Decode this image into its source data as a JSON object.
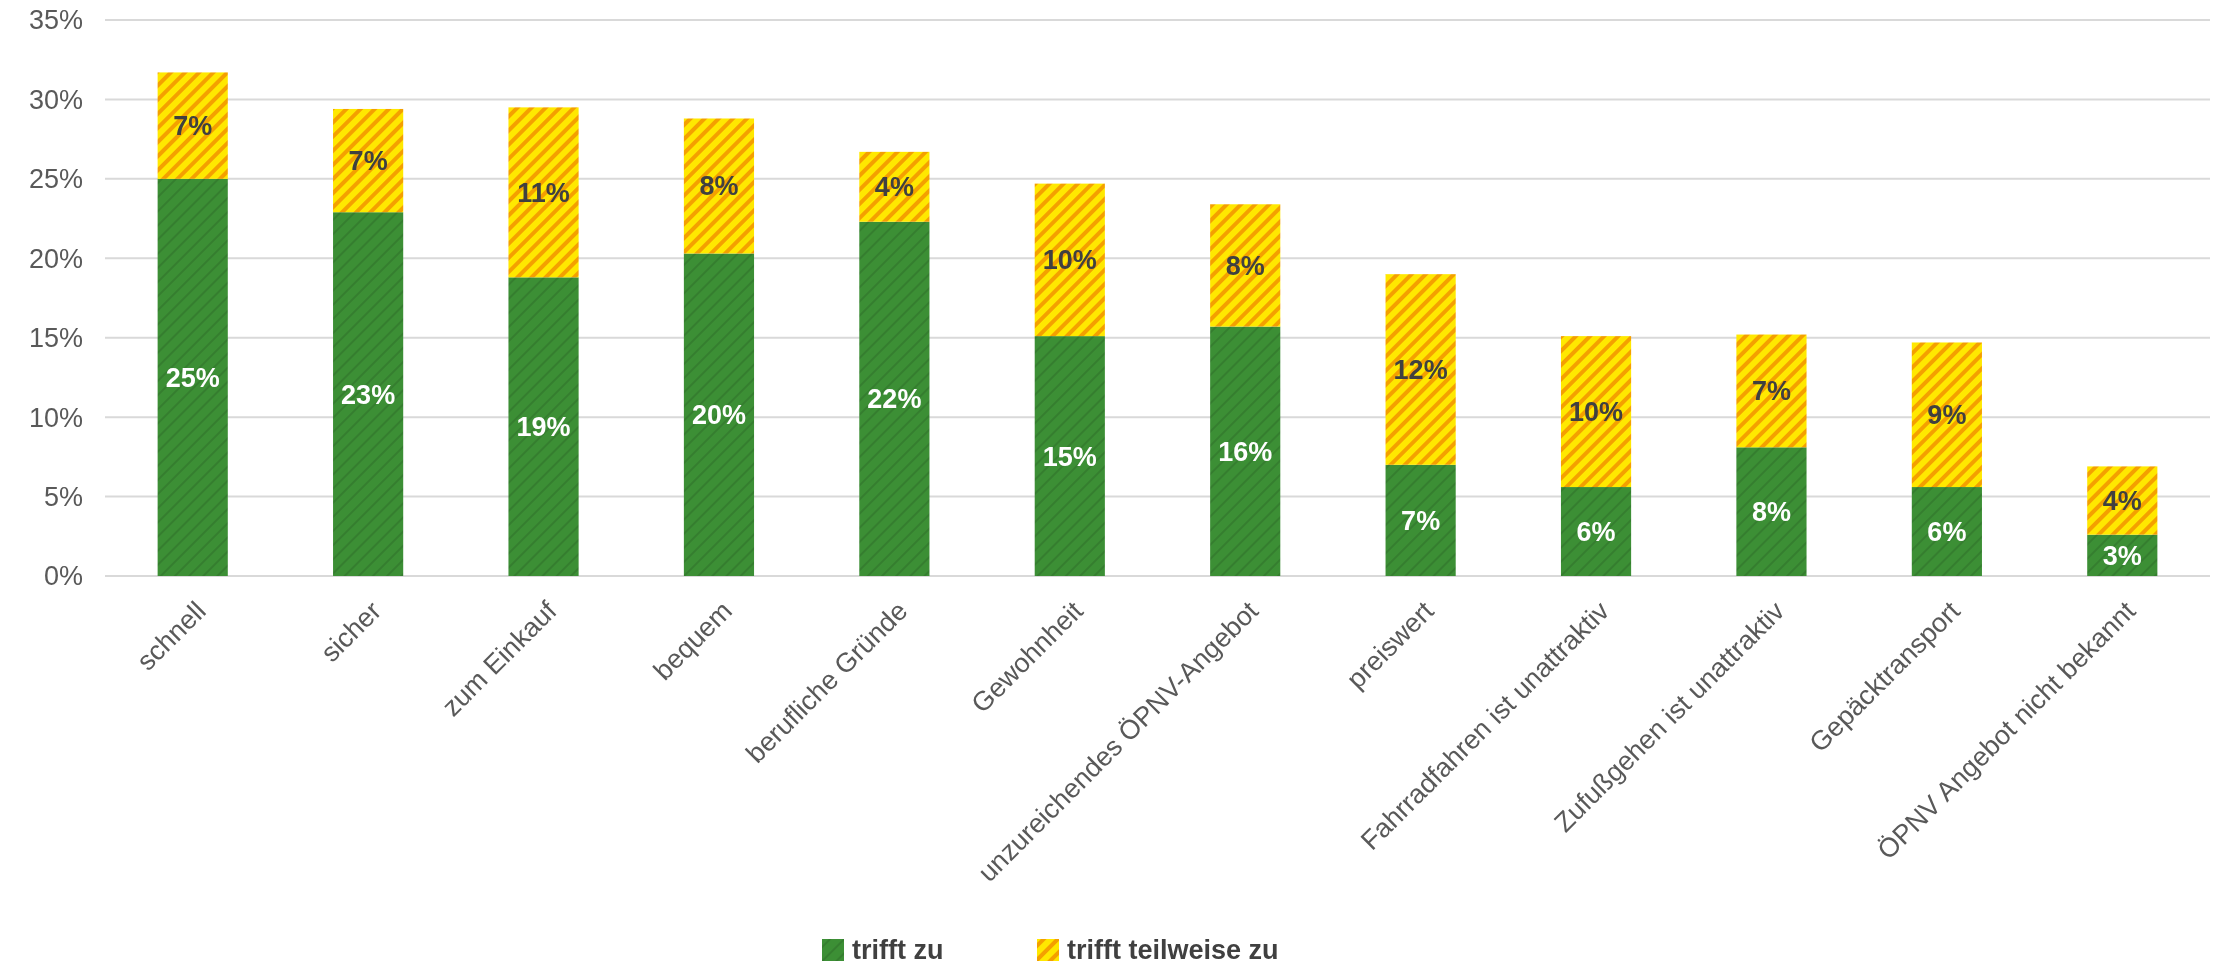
{
  "chart_data": {
    "type": "bar",
    "stacked": true,
    "categories": [
      "schnell",
      "sicher",
      "zum Einkauf",
      "bequem",
      "berufliche Gründe",
      "Gewohnheit",
      "unzureichendes ÖPNV-Angebot",
      "preiswert",
      "Fahrradfahren ist unattraktiv",
      "Zufußgehen ist unattraktiv",
      "Gepäcktransport",
      "ÖPNV Angebot nicht bekannt"
    ],
    "series": [
      {
        "name": "trifft zu",
        "color": "#3c8f35",
        "values": [
          25.0,
          22.9,
          18.8,
          20.3,
          22.3,
          15.1,
          15.7,
          7.0,
          5.6,
          8.1,
          5.6,
          2.6
        ],
        "value_labels": [
          "25%",
          "23%",
          "19%",
          "20%",
          "22%",
          "15%",
          "16%",
          "7%",
          "6%",
          "8%",
          "6%",
          "3%"
        ]
      },
      {
        "name": "trifft teilweise zu",
        "color": "#ffe800",
        "values": [
          6.7,
          6.5,
          10.7,
          8.5,
          4.4,
          9.6,
          7.7,
          12.0,
          9.5,
          7.1,
          9.1,
          4.3
        ],
        "value_labels": [
          "7%",
          "7%",
          "11%",
          "8%",
          "4%",
          "10%",
          "8%",
          "12%",
          "10%",
          "7%",
          "9%",
          "4%"
        ]
      }
    ],
    "ylim": [
      0,
      35
    ],
    "yticks": [
      {
        "value": 0,
        "label": "0%"
      },
      {
        "value": 5,
        "label": "5%"
      },
      {
        "value": 10,
        "label": "10%"
      },
      {
        "value": 15,
        "label": "15%"
      },
      {
        "value": 20,
        "label": "20%"
      },
      {
        "value": 25,
        "label": "25%"
      },
      {
        "value": 30,
        "label": "30%"
      },
      {
        "value": 35,
        "label": "35%"
      }
    ],
    "grid": "y",
    "legend": "bottom"
  }
}
